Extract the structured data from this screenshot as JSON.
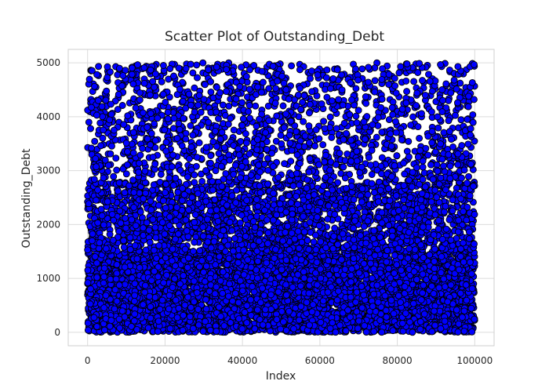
{
  "chart_data": {
    "type": "scatter",
    "title": "Scatter Plot of Outstanding_Debt",
    "xlabel": "Index",
    "ylabel": "Outstanding_Debt",
    "xlim": [
      -5000,
      105000
    ],
    "ylim": [
      -250,
      5250
    ],
    "xticks": [
      0,
      20000,
      40000,
      60000,
      80000,
      100000
    ],
    "xtick_labels": [
      "0",
      "20000",
      "40000",
      "60000",
      "80000",
      "100000"
    ],
    "yticks": [
      0,
      1000,
      2000,
      3000,
      4000,
      5000
    ],
    "ytick_labels": [
      "0",
      "1000",
      "2000",
      "3000",
      "4000",
      "5000"
    ],
    "grid": true,
    "marker_color": "#0000ff",
    "marker_edge_color": "#000000",
    "series": [
      {
        "values_description_note": "",
        "x_range": [
          0,
          100000
        ],
        "density_bands": [
          {
            "y_range": [
              0,
              1500
            ],
            "relative_density": "very high"
          },
          {
            "y_range": [
              1500,
              2800
            ],
            "relative_density": "high"
          },
          {
            "y_range": [
              2800,
              5000
            ],
            "relative_density": "moderate"
          }
        ]
      }
    ]
  }
}
